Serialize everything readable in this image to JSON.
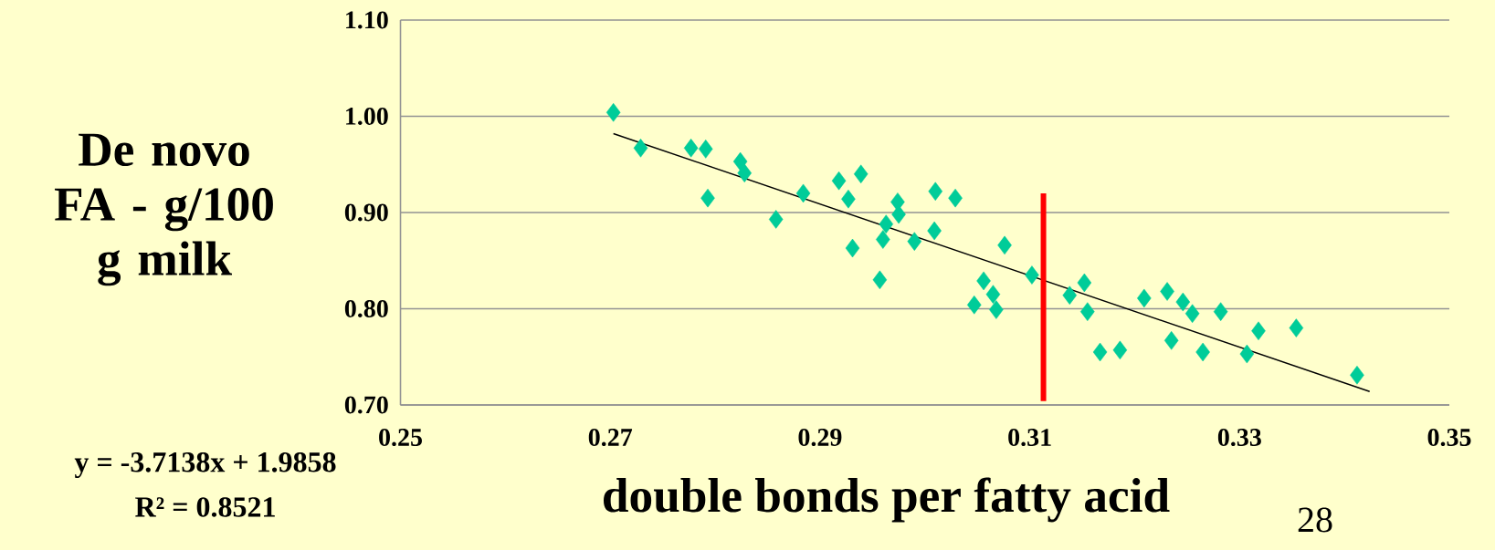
{
  "chart_data": {
    "type": "scatter",
    "xlabel": "double bonds per fatty acid",
    "ylabel": "De novo FA - g/100 g milk",
    "xlim": [
      0.25,
      0.35
    ],
    "ylim": [
      0.7,
      1.1
    ],
    "xticks": [
      0.25,
      0.27,
      0.29,
      0.31,
      0.33,
      0.35
    ],
    "yticks": [
      {
        "value": 0.7,
        "label": "0.70"
      },
      {
        "value": 0.8,
        "label": "0.80"
      },
      {
        "value": 0.9,
        "label": "0.90"
      },
      {
        "value": 1.0,
        "label": "1.00"
      },
      {
        "value": 1.1,
        "label": "1.10"
      }
    ],
    "grid": "y",
    "series": [
      {
        "color": "#00cc99",
        "marker": "diamond",
        "x": [
          0.2703,
          0.2729,
          0.2777,
          0.2791,
          0.2793,
          0.2824,
          0.2828,
          0.2858,
          0.2884,
          0.2918,
          0.2939,
          0.2927,
          0.2931,
          0.2957,
          0.2963,
          0.296,
          0.2974,
          0.2975,
          0.299,
          0.301,
          0.3009,
          0.3029,
          0.3076,
          0.3056,
          0.3065,
          0.3047,
          0.3068,
          0.3102,
          0.3138,
          0.3152,
          0.3155,
          0.3167,
          0.3186,
          0.3209,
          0.3231,
          0.3246,
          0.3235,
          0.3255,
          0.3265,
          0.3282,
          0.3307,
          0.3318,
          0.3354,
          0.3412
        ],
        "values": [
          1.004,
          0.967,
          0.967,
          0.966,
          0.915,
          0.953,
          0.941,
          0.893,
          0.92,
          0.933,
          0.94,
          0.914,
          0.863,
          0.83,
          0.888,
          0.872,
          0.911,
          0.898,
          0.87,
          0.922,
          0.881,
          0.915,
          0.866,
          0.829,
          0.815,
          0.804,
          0.799,
          0.835,
          0.814,
          0.827,
          0.797,
          0.755,
          0.757,
          0.811,
          0.818,
          0.807,
          0.767,
          0.795,
          0.755,
          0.797,
          0.753,
          0.777,
          0.78,
          0.731
        ]
      },
      {
        "type": "line",
        "color": "#000000",
        "marker": "none",
        "x": [
          0.2703,
          0.3424
        ],
        "values": [
          0.982,
          0.714
        ]
      },
      {
        "type": "line",
        "color": "#ff0000",
        "marker": "none",
        "x": [
          0.3113,
          0.3113
        ],
        "values": [
          0.704,
          0.92
        ]
      }
    ],
    "annotations": [
      "y = -3.7138x + 1.9858",
      "R² = 0.8521",
      "28"
    ]
  }
}
